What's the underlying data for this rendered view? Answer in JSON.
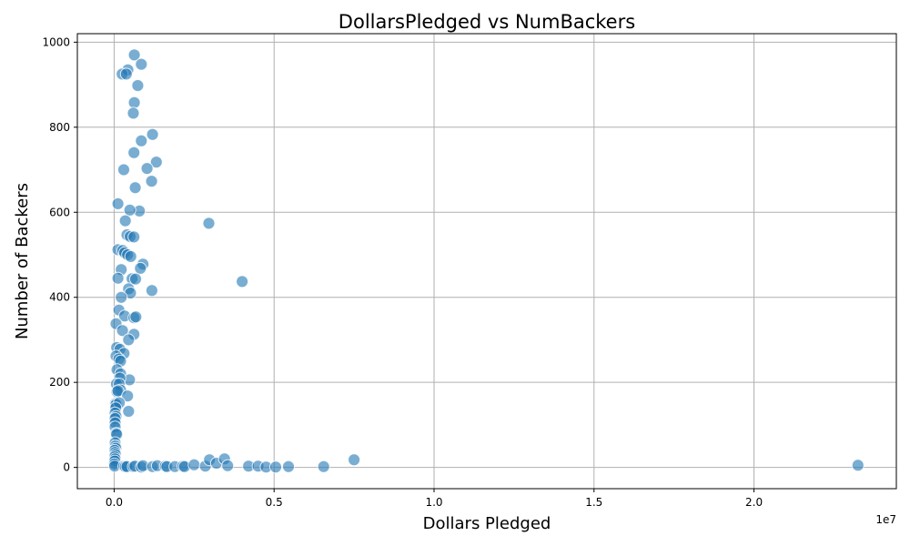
{
  "chart_data": {
    "type": "scatter",
    "title": "DollarsPledged vs NumBackers",
    "xlabel": "Dollars Pledged",
    "ylabel": "Number of Backers",
    "x_offset_label": "1e7",
    "xlim": [
      -1150000,
      24450000
    ],
    "ylim": [
      -50,
      1020
    ],
    "xticks": [
      0,
      5000000,
      10000000,
      15000000,
      20000000
    ],
    "xtick_labels": [
      "0.0",
      "0.5",
      "1.0",
      "1.5",
      "2.0"
    ],
    "yticks": [
      0,
      200,
      400,
      600,
      800,
      1000
    ],
    "ytick_labels": [
      "0",
      "200",
      "400",
      "600",
      "800",
      "1000"
    ],
    "grid": true,
    "legend": "none",
    "color": "#1f77b4",
    "points": [
      [
        630000,
        970
      ],
      [
        850000,
        948
      ],
      [
        430000,
        935
      ],
      [
        250000,
        925
      ],
      [
        380000,
        925
      ],
      [
        740000,
        898
      ],
      [
        630000,
        858
      ],
      [
        600000,
        833
      ],
      [
        1200000,
        783
      ],
      [
        850000,
        768
      ],
      [
        620000,
        740
      ],
      [
        1320000,
        718
      ],
      [
        1030000,
        703
      ],
      [
        300000,
        700
      ],
      [
        1170000,
        673
      ],
      [
        660000,
        658
      ],
      [
        120000,
        620
      ],
      [
        790000,
        603
      ],
      [
        490000,
        605
      ],
      [
        350000,
        580
      ],
      [
        2960000,
        574
      ],
      [
        400000,
        547
      ],
      [
        500000,
        543
      ],
      [
        620000,
        542
      ],
      [
        120000,
        512
      ],
      [
        270000,
        510
      ],
      [
        330000,
        505
      ],
      [
        420000,
        500
      ],
      [
        520000,
        496
      ],
      [
        900000,
        478
      ],
      [
        820000,
        468
      ],
      [
        220000,
        465
      ],
      [
        120000,
        445
      ],
      [
        560000,
        444
      ],
      [
        670000,
        443
      ],
      [
        4000000,
        437
      ],
      [
        450000,
        420
      ],
      [
        1180000,
        416
      ],
      [
        510000,
        410
      ],
      [
        220000,
        400
      ],
      [
        150000,
        370
      ],
      [
        330000,
        356
      ],
      [
        620000,
        352
      ],
      [
        680000,
        354
      ],
      [
        60000,
        338
      ],
      [
        260000,
        322
      ],
      [
        620000,
        313
      ],
      [
        450000,
        300
      ],
      [
        80000,
        282
      ],
      [
        180000,
        278
      ],
      [
        310000,
        268
      ],
      [
        60000,
        262
      ],
      [
        150000,
        255
      ],
      [
        200000,
        250
      ],
      [
        90000,
        230
      ],
      [
        200000,
        220
      ],
      [
        480000,
        206
      ],
      [
        180000,
        210
      ],
      [
        70000,
        196
      ],
      [
        160000,
        196
      ],
      [
        200000,
        182
      ],
      [
        90000,
        178
      ],
      [
        120000,
        180
      ],
      [
        420000,
        168
      ],
      [
        40000,
        150
      ],
      [
        60000,
        148
      ],
      [
        160000,
        152
      ],
      [
        50000,
        140
      ],
      [
        450000,
        132
      ],
      [
        30000,
        128
      ],
      [
        60000,
        120
      ],
      [
        30000,
        115
      ],
      [
        30000,
        105
      ],
      [
        30000,
        95
      ],
      [
        60000,
        80
      ],
      [
        80000,
        78
      ],
      [
        30000,
        58
      ],
      [
        40000,
        50
      ],
      [
        50000,
        45
      ],
      [
        20000,
        40
      ],
      [
        30000,
        35
      ],
      [
        40000,
        30
      ],
      [
        20000,
        25
      ],
      [
        30000,
        20
      ],
      [
        20000,
        15
      ],
      [
        10000,
        8
      ],
      [
        15000,
        3
      ],
      [
        300000,
        3
      ],
      [
        350000,
        2
      ],
      [
        400000,
        2
      ],
      [
        600000,
        2
      ],
      [
        650000,
        3
      ],
      [
        850000,
        1
      ],
      [
        900000,
        4
      ],
      [
        1200000,
        2
      ],
      [
        1350000,
        4
      ],
      [
        1600000,
        3
      ],
      [
        1650000,
        2
      ],
      [
        1900000,
        2
      ],
      [
        2150000,
        3
      ],
      [
        2200000,
        2
      ],
      [
        2500000,
        6
      ],
      [
        2850000,
        3
      ],
      [
        2980000,
        18
      ],
      [
        3200000,
        10
      ],
      [
        3450000,
        20
      ],
      [
        3550000,
        4
      ],
      [
        4200000,
        3
      ],
      [
        4500000,
        3
      ],
      [
        4750000,
        1
      ],
      [
        5050000,
        1
      ],
      [
        5450000,
        2
      ],
      [
        6550000,
        2
      ],
      [
        7500000,
        18
      ],
      [
        23250000,
        5
      ]
    ]
  }
}
